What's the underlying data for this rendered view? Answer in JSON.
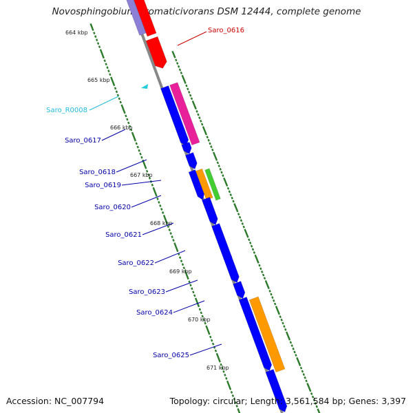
{
  "header": {
    "title": "Novosphingobium aromaticivorans DSM 12444, complete genome"
  },
  "footer": {
    "accession": "Accession: NC_007794",
    "topology": "Topology: circular; Length: 3,561,584 bp; Genes: 3,397"
  },
  "map": {
    "kbp_ticks": [
      "664 kbp",
      "665 kbp",
      "666 kbp",
      "667 kbp",
      "668 kbp",
      "669 kbp",
      "670 kbp",
      "671 kbp"
    ],
    "colors": {
      "backbone": "#888888",
      "tick": "#2a7a2a",
      "red_gene": "#ff0000",
      "purple_gene": "#8b7fd6",
      "blue_gene": "#0000ff",
      "magenta_gene": "#e8209a",
      "green_gene": "#44cc33",
      "orange_gene": "#ff9900",
      "rna_gene": "#22ccdd",
      "label_blue": "#0000aa",
      "label_red": "#cc0000",
      "label_cyan": "#22bbdd"
    },
    "labels": [
      {
        "name": "Saro_0616",
        "color": "#cc0000"
      },
      {
        "name": "Saro_R0008",
        "color": "#22bbdd"
      },
      {
        "name": "Saro_0617",
        "color": "#0000aa"
      },
      {
        "name": "Saro_0618",
        "color": "#0000aa"
      },
      {
        "name": "Saro_0619",
        "color": "#0000aa"
      },
      {
        "name": "Saro_0620",
        "color": "#0000aa"
      },
      {
        "name": "Saro_0621",
        "color": "#0000aa"
      },
      {
        "name": "Saro_0622",
        "color": "#0000aa"
      },
      {
        "name": "Saro_0623",
        "color": "#0000aa"
      },
      {
        "name": "Saro_0624",
        "color": "#0000aa"
      },
      {
        "name": "Saro_0625",
        "color": "#0000aa"
      }
    ]
  }
}
